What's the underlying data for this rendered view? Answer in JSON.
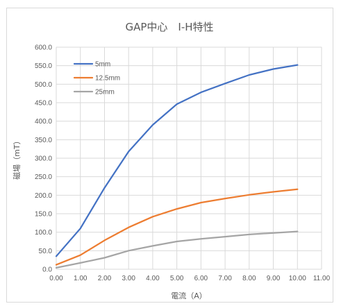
{
  "chart_data": {
    "type": "line",
    "title": "GAP中心　I-H特性",
    "xlabel": "電流（A）",
    "ylabel": "磁場（mT）",
    "xlim": [
      0,
      11
    ],
    "ylim": [
      0,
      600
    ],
    "x_ticks": [
      "0.00",
      "1.00",
      "2.00",
      "3.00",
      "4.00",
      "5.00",
      "6.00",
      "7.00",
      "8.00",
      "9.00",
      "10.00",
      "11.00"
    ],
    "y_ticks": [
      "0.0",
      "50.0",
      "100.0",
      "150.0",
      "200.0",
      "250.0",
      "300.0",
      "350.0",
      "400.0",
      "450.0",
      "500.0",
      "550.0",
      "600.0"
    ],
    "grid": true,
    "legend_position": "top-left",
    "x": [
      0,
      1,
      2,
      3,
      4,
      5,
      6,
      7,
      8,
      9,
      10
    ],
    "series": [
      {
        "name": "5mm",
        "color": "#4472C4",
        "values": [
          35,
          110,
          220,
          318,
          390,
          446,
          478,
          502,
          525,
          541,
          552
        ]
      },
      {
        "name": "12.5mm",
        "color": "#ED7D31",
        "values": [
          12,
          38,
          78,
          113,
          142,
          163,
          180,
          191,
          201,
          209,
          216
        ]
      },
      {
        "name": "25mm",
        "color": "#A5A5A5",
        "values": [
          4,
          17,
          31,
          50,
          63,
          75,
          82,
          88,
          94,
          98,
          102
        ]
      }
    ]
  }
}
